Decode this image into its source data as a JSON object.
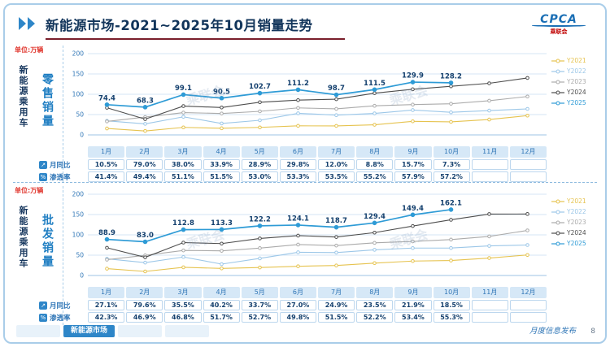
{
  "header": {
    "title": "新能源市场-2021~2025年10月销量走势",
    "logo": {
      "text": "CPCA",
      "subtext": "乘联会"
    }
  },
  "watermark": "乘联会",
  "footer": {
    "tabs": [
      {
        "label": "",
        "active": false
      },
      {
        "label": "新能源市场",
        "active": true
      },
      {
        "label": "",
        "active": false
      },
      {
        "label": "",
        "active": false
      }
    ],
    "publish": "月度信息发布",
    "page": "8"
  },
  "sections": [
    {
      "unit_label": "单位:万辆",
      "side_label": "新能源乘用车",
      "axis_label": "零售销量",
      "rows": [
        {
          "label": "月同比",
          "icon": "yoy-icon",
          "values": [
            "10.5%",
            "79.0%",
            "38.0%",
            "33.9%",
            "28.9%",
            "29.8%",
            "12.0%",
            "8.8%",
            "15.7%",
            "7.3%",
            "",
            ""
          ]
        },
        {
          "label": "渗透率",
          "icon": "penetration-icon",
          "values": [
            "41.4%",
            "49.4%",
            "51.1%",
            "51.5%",
            "53.0%",
            "53.3%",
            "53.5%",
            "55.2%",
            "57.9%",
            "57.2%",
            "",
            ""
          ]
        }
      ]
    },
    {
      "unit_label": "单位:万辆",
      "side_label": "新能源乘用车",
      "axis_label": "批发销量",
      "rows": [
        {
          "label": "月同比",
          "icon": "yoy-icon",
          "values": [
            "27.1%",
            "79.6%",
            "35.5%",
            "40.2%",
            "33.7%",
            "27.0%",
            "24.9%",
            "23.5%",
            "21.9%",
            "18.5%",
            "",
            ""
          ]
        },
        {
          "label": "渗透率",
          "icon": "penetration-icon",
          "values": [
            "42.3%",
            "46.9%",
            "46.8%",
            "51.7%",
            "52.7%",
            "49.8%",
            "51.5%",
            "52.2%",
            "53.4%",
            "55.3%",
            "",
            ""
          ]
        }
      ]
    }
  ],
  "chart_data": [
    {
      "type": "line",
      "title": "零售销量",
      "categories": [
        "1月",
        "2月",
        "3月",
        "4月",
        "5月",
        "6月",
        "7月",
        "8月",
        "9月",
        "10月",
        "11月",
        "12月"
      ],
      "ylim": [
        0,
        200
      ],
      "yticks": [
        0,
        50,
        100,
        150,
        200
      ],
      "legend_position": "right",
      "series": [
        {
          "name": "Y2021",
          "color": "#E6C34F",
          "labeled": false,
          "values": [
            15.8,
            9.7,
            18.5,
            16.3,
            18.5,
            22.3,
            22.2,
            24.9,
            33.4,
            32.1,
            37.8,
            47.5
          ]
        },
        {
          "name": "Y2022",
          "color": "#9CC7E8",
          "labeled": false,
          "values": [
            34.7,
            27.2,
            44.5,
            28.2,
            36.0,
            53.2,
            48.6,
            52.9,
            61.1,
            55.6,
            59.8,
            64.0
          ]
        },
        {
          "name": "Y2023",
          "color": "#ABABAB",
          "labeled": false,
          "values": [
            33.2,
            43.9,
            54.9,
            52.7,
            58.0,
            66.5,
            64.1,
            71.6,
            74.6,
            76.7,
            84.1,
            94.5
          ]
        },
        {
          "name": "Y2024",
          "color": "#4D4D4D",
          "labeled": false,
          "values": [
            66.8,
            38.8,
            70.9,
            67.4,
            80.4,
            85.6,
            87.8,
            102.7,
            112.3,
            119.6,
            127.0,
            140.2
          ]
        },
        {
          "name": "Y2025",
          "color": "#2E9BD6",
          "labeled": true,
          "values": [
            74.4,
            68.3,
            99.1,
            90.5,
            102.7,
            111.2,
            98.7,
            111.5,
            129.9,
            128.2,
            null,
            null
          ]
        }
      ]
    },
    {
      "type": "line",
      "title": "批发销量",
      "categories": [
        "1月",
        "2月",
        "3月",
        "4月",
        "5月",
        "6月",
        "7月",
        "8月",
        "9月",
        "10月",
        "11月",
        "12月"
      ],
      "ylim": [
        0,
        200
      ],
      "yticks": [
        0,
        50,
        100,
        150,
        200
      ],
      "legend_position": "right",
      "series": [
        {
          "name": "Y2021",
          "color": "#E6C34F",
          "labeled": false,
          "values": [
            16.8,
            10.0,
            20.2,
            17.4,
            19.7,
            22.7,
            24.6,
            30.4,
            35.5,
            36.8,
            42.9,
            50.5
          ]
        },
        {
          "name": "Y2022",
          "color": "#9CC7E8",
          "labeled": false,
          "values": [
            41.2,
            31.7,
            45.5,
            28.0,
            42.1,
            57.1,
            56.4,
            63.2,
            67.5,
            67.6,
            72.8,
            75.0
          ]
        },
        {
          "name": "Y2023",
          "color": "#ABABAB",
          "labeled": false,
          "values": [
            38.9,
            49.6,
            61.7,
            60.7,
            67.3,
            76.1,
            73.7,
            80.3,
            83.9,
            88.3,
            96.2,
            110.9
          ]
        },
        {
          "name": "Y2024",
          "color": "#4D4D4D",
          "labeled": false,
          "values": [
            68.2,
            44.7,
            81.0,
            78.5,
            91.2,
            98.1,
            94.7,
            105.5,
            121.7,
            137.1,
            151.2,
            151.3
          ]
        },
        {
          "name": "Y2025",
          "color": "#2E9BD6",
          "labeled": true,
          "values": [
            88.9,
            83.0,
            112.8,
            113.3,
            122.2,
            124.1,
            118.7,
            129.4,
            149.4,
            162.1,
            null,
            null
          ]
        }
      ]
    }
  ]
}
